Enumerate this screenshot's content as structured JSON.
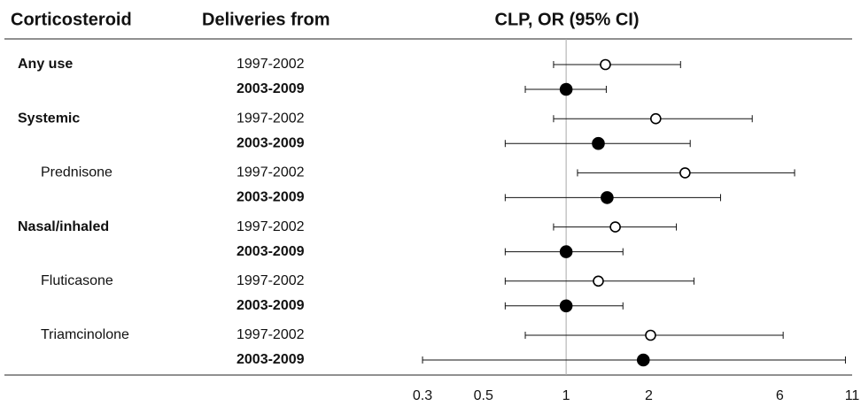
{
  "chart_data": {
    "type": "forest",
    "headers": [
      "Corticosteroid",
      "Deliveries from",
      "CLP, OR (95% CI)"
    ],
    "categories": [
      "Any use",
      "Systemic",
      "Prednisone",
      "Nasal/inhaled",
      "Fluticasone",
      "Triamcinolone"
    ],
    "category_levels": [
      0,
      0,
      1,
      0,
      1,
      1
    ],
    "series": [
      {
        "name": "1997-2002",
        "marker": "open",
        "bold": false,
        "values": [
          1.39,
          2.12,
          2.71,
          1.51,
          1.31,
          2.03
        ],
        "lower": [
          0.9,
          0.9,
          1.1,
          0.9,
          0.6,
          0.71
        ],
        "upper": [
          2.61,
          4.76,
          6.79,
          2.52,
          2.92,
          6.17
        ]
      },
      {
        "name": "2003-2009",
        "marker": "filled",
        "bold": true,
        "values": [
          1.0,
          1.31,
          1.41,
          1.0,
          1.0,
          1.91
        ],
        "lower": [
          0.71,
          0.6,
          0.6,
          0.6,
          0.6,
          0.3
        ],
        "upper": [
          1.4,
          2.83,
          3.65,
          1.61,
          1.61,
          10.4
        ]
      }
    ],
    "xlim": [
      0.3,
      11
    ],
    "xticks": [
      0.3,
      0.5,
      1,
      2,
      6,
      11
    ],
    "log_x": true,
    "reference": 1
  }
}
